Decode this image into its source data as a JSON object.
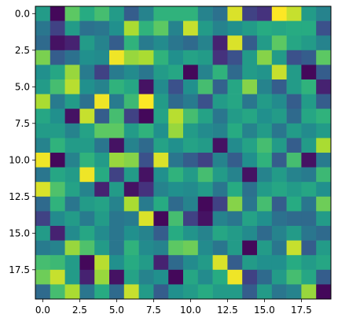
{
  "chart_data": {
    "type": "heatmap",
    "title": "",
    "xlabel": "",
    "ylabel": "",
    "rows": 20,
    "cols": 20,
    "colormap": "viridis",
    "value_range": [
      0,
      1
    ],
    "xlim": [
      -0.5,
      19.5
    ],
    "ylim": [
      19.5,
      -0.5
    ],
    "x_ticks": [
      0,
      2.5,
      5,
      7.5,
      10,
      12.5,
      15,
      17.5
    ],
    "x_tick_labels": [
      "0.0",
      "2.5",
      "5.0",
      "7.5",
      "10.0",
      "12.5",
      "15.0",
      "17.5"
    ],
    "y_ticks": [
      0,
      2.5,
      5,
      7.5,
      10,
      12.5,
      15,
      17.5
    ],
    "y_tick_labels": [
      "0.0",
      "2.5",
      "5.0",
      "7.5",
      "10.0",
      "12.5",
      "15.0",
      "17.5"
    ],
    "grid": false,
    "values": [
      [
        0.55,
        0.02,
        0.75,
        0.62,
        0.7,
        0.55,
        0.3,
        0.45,
        0.65,
        0.65,
        0.65,
        0.45,
        0.38,
        0.95,
        0.2,
        0.15,
        1.0,
        0.92,
        0.55,
        0.45
      ],
      [
        0.4,
        0.2,
        0.55,
        0.38,
        0.4,
        0.5,
        0.88,
        0.65,
        0.75,
        0.45,
        0.92,
        0.55,
        0.45,
        0.5,
        0.55,
        0.62,
        0.6,
        0.62,
        0.62,
        0.25
      ],
      [
        0.35,
        0.05,
        0.1,
        0.55,
        0.45,
        0.3,
        0.65,
        0.42,
        0.48,
        0.4,
        0.35,
        0.45,
        0.1,
        0.95,
        0.3,
        0.55,
        0.75,
        0.6,
        0.55,
        0.45
      ],
      [
        0.8,
        0.3,
        0.38,
        0.5,
        0.48,
        0.98,
        0.85,
        0.88,
        0.65,
        0.5,
        0.58,
        0.55,
        0.15,
        0.25,
        0.55,
        0.82,
        0.55,
        0.25,
        0.3,
        0.75
      ],
      [
        0.5,
        0.6,
        0.85,
        0.42,
        0.2,
        0.42,
        0.48,
        0.4,
        0.55,
        0.6,
        0.02,
        0.45,
        0.65,
        0.35,
        0.55,
        0.52,
        0.92,
        0.55,
        0.02,
        0.3
      ],
      [
        0.55,
        0.7,
        0.9,
        0.5,
        0.45,
        0.65,
        0.6,
        0.05,
        0.48,
        0.25,
        0.5,
        0.7,
        0.32,
        0.6,
        0.82,
        0.45,
        0.3,
        0.55,
        0.65,
        0.1
      ],
      [
        0.88,
        0.42,
        0.55,
        0.38,
        0.98,
        0.42,
        0.68,
        1.0,
        0.55,
        0.35,
        0.42,
        0.25,
        0.55,
        0.6,
        0.4,
        0.55,
        0.48,
        0.3,
        0.55,
        0.3
      ],
      [
        0.6,
        0.5,
        0.05,
        0.92,
        0.3,
        0.7,
        0.2,
        0.02,
        0.58,
        0.9,
        0.7,
        0.58,
        0.4,
        0.55,
        0.6,
        0.5,
        0.55,
        0.35,
        0.6,
        0.65
      ],
      [
        0.55,
        0.55,
        0.45,
        0.58,
        0.75,
        0.75,
        0.55,
        0.65,
        0.5,
        0.85,
        0.55,
        0.48,
        0.45,
        0.62,
        0.45,
        0.55,
        0.4,
        0.55,
        0.48,
        0.55
      ],
      [
        0.45,
        0.65,
        0.55,
        0.55,
        0.4,
        0.05,
        0.45,
        0.35,
        0.58,
        0.5,
        0.58,
        0.55,
        0.05,
        0.48,
        0.58,
        0.7,
        0.55,
        0.3,
        0.55,
        0.88
      ],
      [
        0.98,
        0.02,
        0.45,
        0.65,
        0.55,
        0.85,
        0.82,
        0.25,
        0.95,
        0.4,
        0.3,
        0.2,
        0.45,
        0.3,
        0.5,
        0.65,
        0.3,
        0.7,
        0.05,
        0.42
      ],
      [
        0.4,
        0.6,
        0.55,
        0.98,
        0.62,
        0.2,
        0.55,
        0.05,
        0.5,
        0.65,
        0.55,
        0.7,
        0.55,
        0.45,
        0.05,
        0.45,
        0.55,
        0.45,
        0.42,
        0.68
      ],
      [
        0.95,
        0.72,
        0.58,
        0.45,
        0.1,
        0.55,
        0.05,
        0.15,
        0.45,
        0.5,
        0.48,
        0.55,
        0.4,
        0.62,
        0.38,
        0.55,
        0.6,
        0.55,
        0.6,
        0.5
      ],
      [
        0.35,
        0.65,
        0.4,
        0.55,
        0.58,
        0.45,
        0.88,
        0.42,
        0.62,
        0.35,
        0.45,
        0.02,
        0.2,
        0.82,
        0.4,
        0.7,
        0.3,
        0.62,
        0.4,
        0.78
      ],
      [
        0.2,
        0.48,
        0.55,
        0.42,
        0.55,
        0.4,
        0.42,
        0.95,
        0.02,
        0.7,
        0.2,
        0.05,
        0.45,
        0.4,
        0.58,
        0.5,
        0.38,
        0.35,
        0.35,
        0.55
      ],
      [
        0.55,
        0.1,
        0.48,
        0.6,
        0.48,
        0.4,
        0.5,
        0.45,
        0.3,
        0.62,
        0.52,
        0.45,
        0.6,
        0.55,
        0.48,
        0.35,
        0.45,
        0.55,
        0.4,
        0.35
      ],
      [
        0.42,
        0.45,
        0.85,
        0.72,
        0.55,
        0.4,
        0.65,
        0.48,
        0.45,
        0.75,
        0.78,
        0.48,
        0.4,
        0.55,
        0.02,
        0.55,
        0.4,
        0.92,
        0.3,
        0.55
      ],
      [
        0.7,
        0.68,
        0.55,
        0.02,
        0.9,
        0.5,
        0.62,
        0.55,
        0.1,
        0.35,
        0.48,
        0.55,
        0.95,
        0.3,
        0.55,
        0.5,
        0.5,
        0.62,
        0.55,
        0.6
      ],
      [
        0.78,
        0.92,
        0.55,
        0.1,
        0.85,
        0.05,
        0.58,
        0.45,
        0.5,
        0.02,
        0.6,
        0.48,
        0.62,
        0.98,
        0.2,
        0.35,
        0.55,
        0.7,
        0.6,
        0.3
      ],
      [
        0.35,
        0.7,
        0.88,
        0.4,
        0.62,
        0.35,
        0.92,
        0.55,
        0.3,
        0.5,
        0.55,
        0.62,
        0.55,
        0.55,
        0.3,
        0.55,
        0.4,
        0.45,
        0.85,
        0.02
      ]
    ]
  }
}
